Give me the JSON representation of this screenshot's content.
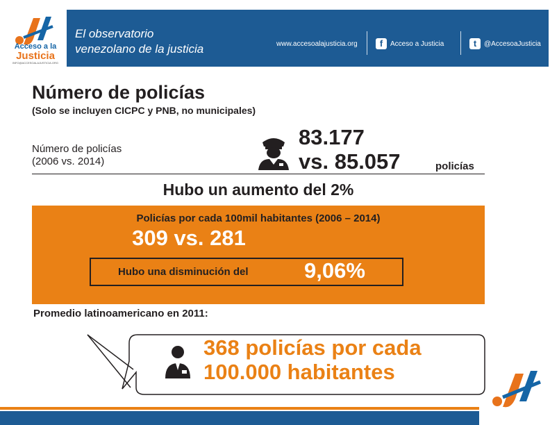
{
  "brand": {
    "logo_line1": "Acceso a la",
    "logo_line2": "Justicia",
    "logo_sub": "INFO@ACCESOALAJUSTICIA.ORG",
    "tagline_line1": "El observatorio",
    "tagline_line2": "venezolano de la justicia",
    "website": "www.accesoalajusticia.org",
    "facebook_label": "Acceso a Justicia",
    "facebook_icon": "facebook-icon",
    "twitter_label": "@AccesoaJusticia",
    "twitter_icon": "twitter-icon",
    "colors": {
      "blue": "#1d5b94",
      "orange": "#ea8115"
    }
  },
  "section1": {
    "title": "Número de policías",
    "subtitle": "(Solo se incluyen CICPC y PNB, no municipales)",
    "label_line1": "Número de policías",
    "label_line2": "(2006 vs. 2014)",
    "icon": "police-officer-icon",
    "value_2006": "83.177",
    "value_2014": "vs. 85.057",
    "unit": "policías"
  },
  "increase": "Hubo un aumento del 2%",
  "ratio": {
    "heading": "Policías por cada 100mil habitantes (2006 – 2014)",
    "comparison": "309 vs. 281",
    "decrease_label": "Hubo una disminución del",
    "decrease_value": "9,06%"
  },
  "latam": {
    "label": "Promedio latinoamericano en 2011:",
    "icon": "person-icon",
    "line1": "368 policías  por cada",
    "line2": "100.000 habitantes"
  }
}
